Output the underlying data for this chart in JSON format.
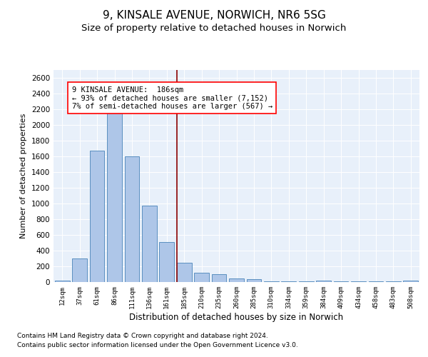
{
  "title1": "9, KINSALE AVENUE, NORWICH, NR6 5SG",
  "title2": "Size of property relative to detached houses in Norwich",
  "xlabel": "Distribution of detached houses by size in Norwich",
  "ylabel": "Number of detached properties",
  "bar_labels": [
    "12sqm",
    "37sqm",
    "61sqm",
    "86sqm",
    "111sqm",
    "136sqm",
    "161sqm",
    "185sqm",
    "210sqm",
    "235sqm",
    "260sqm",
    "285sqm",
    "310sqm",
    "334sqm",
    "359sqm",
    "384sqm",
    "409sqm",
    "434sqm",
    "458sqm",
    "483sqm",
    "508sqm"
  ],
  "bar_values": [
    20,
    300,
    1670,
    2150,
    1600,
    970,
    510,
    245,
    120,
    100,
    45,
    35,
    5,
    5,
    5,
    20,
    5,
    5,
    5,
    5,
    20
  ],
  "bar_color": "#aec6e8",
  "bar_edge_color": "#5a8fc0",
  "vline_color": "#8b0000",
  "annotation_text": "9 KINSALE AVENUE:  186sqm\n← 93% of detached houses are smaller (7,152)\n7% of semi-detached houses are larger (567) →",
  "ylim_max": 2700,
  "yticks": [
    0,
    200,
    400,
    600,
    800,
    1000,
    1200,
    1400,
    1600,
    1800,
    2000,
    2200,
    2400,
    2600
  ],
  "footnote1": "Contains HM Land Registry data © Crown copyright and database right 2024.",
  "footnote2": "Contains public sector information licensed under the Open Government Licence v3.0.",
  "background_color": "#e8f0fa",
  "fig_background": "#ffffff",
  "title1_fontsize": 11,
  "title2_fontsize": 9.5,
  "xlabel_fontsize": 8.5,
  "ylabel_fontsize": 8,
  "annot_fontsize": 7.5,
  "footnote_fontsize": 6.5
}
